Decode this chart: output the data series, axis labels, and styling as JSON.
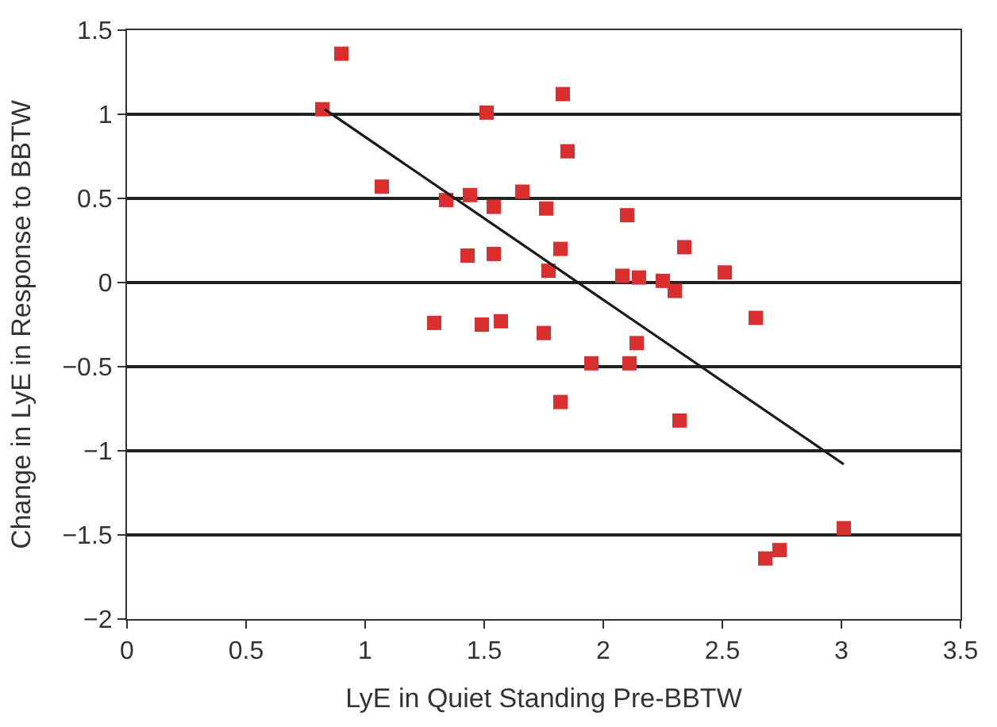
{
  "chart_data": {
    "type": "scatter",
    "xlabel": "LyE in Quiet Standing Pre-BBTW",
    "ylabel": "Change in LyE in Response to BBTW",
    "xlim": [
      0,
      3.5
    ],
    "ylim": [
      -2,
      1.5
    ],
    "xticks": [
      0,
      0.5,
      1,
      1.5,
      2,
      2.5,
      3,
      3.5
    ],
    "yticks": [
      {
        "value": -2,
        "label": "−2"
      },
      {
        "value": -1.5,
        "label": "−1.5"
      },
      {
        "value": -1,
        "label": "−1"
      },
      {
        "value": -0.5,
        "label": "−0.5"
      },
      0,
      0.5,
      1,
      1.5
    ],
    "grid": "y",
    "legend": false,
    "marker": "square",
    "series": [
      {
        "color": "#d92f2f",
        "x": [
          0.82,
          0.9,
          1.07,
          1.29,
          1.34,
          1.43,
          1.44,
          1.49,
          1.51,
          1.54,
          1.54,
          1.57,
          1.66,
          1.75,
          1.76,
          1.77,
          1.82,
          1.82,
          1.83,
          1.85,
          1.95,
          2.08,
          2.1,
          2.11,
          2.15,
          2.14,
          2.25,
          2.3,
          2.34,
          2.32,
          2.51,
          2.64,
          2.68,
          2.74,
          3.01
        ],
        "values": [
          1.03,
          1.36,
          0.57,
          -0.24,
          0.49,
          0.16,
          0.52,
          -0.25,
          1.01,
          0.45,
          0.17,
          -0.23,
          0.54,
          -0.3,
          0.44,
          0.07,
          0.2,
          -0.71,
          1.12,
          0.78,
          -0.48,
          0.04,
          0.4,
          -0.48,
          0.03,
          -0.36,
          0.01,
          -0.05,
          0.21,
          -0.82,
          0.06,
          -0.21,
          -1.64,
          -1.59,
          -1.46
        ]
      },
      {
        "type": "line",
        "color": "#1a1a1a",
        "marker": "none",
        "line_style": "solid",
        "x": [
          0.83,
          3.01
        ],
        "values": [
          1.03,
          -1.08
        ]
      }
    ]
  }
}
